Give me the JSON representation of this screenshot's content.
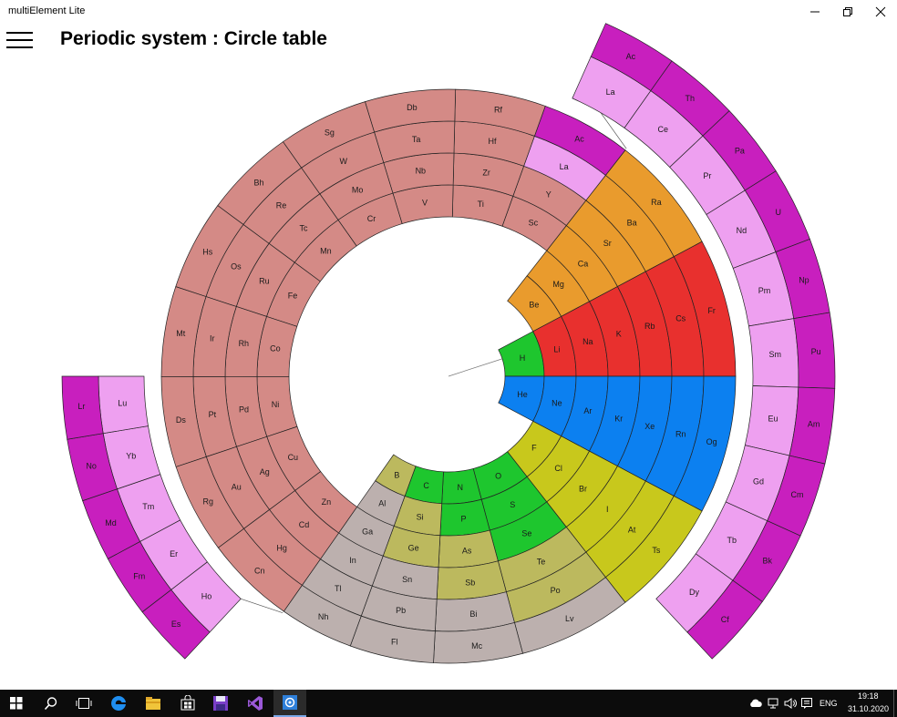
{
  "window": {
    "title": "multiElement Lite"
  },
  "header": {
    "page_title": "Periodic system : Circle table"
  },
  "colors": {
    "alkali": "#e8302e",
    "alkaline_earth": "#e99b2d",
    "hydrogen_group": "#1ec62e",
    "noble_gas": "#0c80f0",
    "halogen": "#c8c81c",
    "chalcogen_metalloid": "#bcb95e",
    "post_transition": "#bcb0ae",
    "transition": "#d48a86",
    "lanthanide": "#eea0f0",
    "actinide": "#c81fbe"
  },
  "periodic_table": {
    "inner_ring": [
      {
        "symbol": "H",
        "category": "hydrogen_group"
      },
      {
        "symbol": "He",
        "category": "noble_gas"
      }
    ],
    "s_block": {
      "group1": [
        "Li",
        "Na",
        "K",
        "Rb",
        "Cs",
        "Fr"
      ],
      "group2": [
        "Be",
        "Mg",
        "Ca",
        "Sr",
        "Ba",
        "Ra"
      ]
    },
    "p_block": {
      "group18": [
        "Ne",
        "Ar",
        "Kr",
        "Xe",
        "Rn",
        "Og"
      ],
      "group17": [
        "F",
        "Cl",
        "Br",
        "I",
        "At",
        "Ts"
      ],
      "group16": [
        "O",
        "S",
        "Se",
        "Te",
        "Po",
        "Lv"
      ],
      "group15": [
        "N",
        "P",
        "As",
        "Sb",
        "Bi",
        "Mc"
      ],
      "group14": [
        "C",
        "Si",
        "Ge",
        "Sn",
        "Pb",
        "Fl"
      ],
      "group13": [
        "B",
        "Al",
        "Ga",
        "In",
        "Tl",
        "Nh"
      ],
      "cat16": [
        "hydrogen_group",
        "hydrogen_group",
        "hydrogen_group",
        "chalcogen_metalloid",
        "chalcogen_metalloid",
        "post_transition"
      ],
      "cat15": [
        "hydrogen_group",
        "hydrogen_group",
        "chalcogen_metalloid",
        "chalcogen_metalloid",
        "post_transition",
        "post_transition"
      ],
      "cat14": [
        "hydrogen_group",
        "chalcogen_metalloid",
        "chalcogen_metalloid",
        "post_transition",
        "post_transition",
        "post_transition"
      ],
      "cat13": [
        "chalcogen_metalloid",
        "post_transition",
        "post_transition",
        "post_transition",
        "post_transition",
        "post_transition"
      ]
    },
    "d_block": {
      "groups": [
        [
          "Sc",
          "Y",
          "La",
          "Ac"
        ],
        [
          "Ti",
          "Zr",
          "Hf",
          "Rf"
        ],
        [
          "V",
          "Nb",
          "Ta",
          "Db"
        ],
        [
          "Cr",
          "Mo",
          "W",
          "Sg"
        ],
        [
          "Mn",
          "Tc",
          "Re",
          "Bh"
        ],
        [
          "Fe",
          "Ru",
          "Os",
          "Hs"
        ],
        [
          "Co",
          "Rh",
          "Ir",
          "Mt"
        ],
        [
          "Ni",
          "Pd",
          "Pt",
          "Ds"
        ],
        [
          "Cu",
          "Ag",
          "Au",
          "Rg"
        ],
        [
          "Zn",
          "Cd",
          "Hg",
          "Cn"
        ]
      ]
    },
    "f_block": {
      "right_arc_lanthanides": [
        "La",
        "Ce",
        "Pr",
        "Nd",
        "Pm",
        "Sm",
        "Eu",
        "Gd",
        "Tb",
        "Dy"
      ],
      "right_arc_actinides": [
        "Ac",
        "Th",
        "Pa",
        "U",
        "Np",
        "Pu",
        "Am",
        "Cm",
        "Bk",
        "Cf"
      ],
      "left_arc_lanthanides": [
        "Ho",
        "Er",
        "Tm",
        "Yb",
        "Lu"
      ],
      "left_arc_actinides": [
        "Es",
        "Fm",
        "Md",
        "No",
        "Lr"
      ]
    }
  },
  "taskbar": {
    "icons": [
      "windows-start-icon",
      "search-icon",
      "task-view-icon",
      "edge-browser-icon",
      "file-explorer-icon",
      "store-icon",
      "save-disk-icon",
      "visual-studio-icon",
      "multielement-app-icon"
    ],
    "language": "ENG",
    "time": "19:18",
    "date": "31.10.2020"
  }
}
